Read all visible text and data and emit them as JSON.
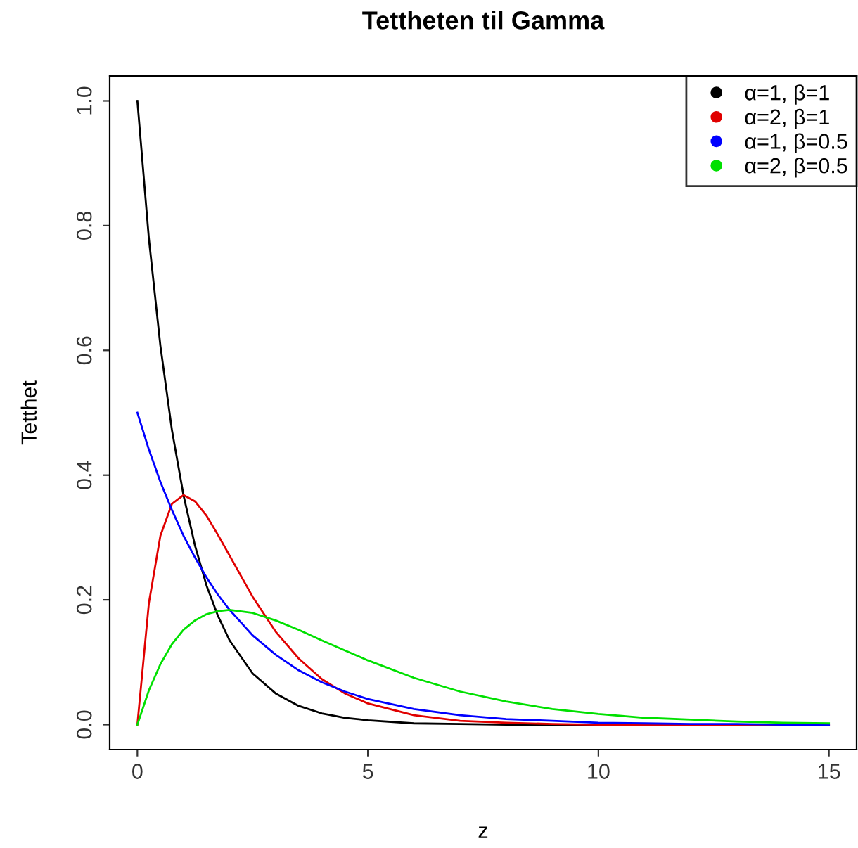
{
  "chart_data": {
    "type": "line",
    "title": "Tettheten til Gamma",
    "xlabel": "z",
    "ylabel": "Tetthet",
    "x": [
      0,
      0.25,
      0.5,
      0.75,
      1,
      1.25,
      1.5,
      1.75,
      2,
      2.5,
      3,
      3.5,
      4,
      4.5,
      5,
      6,
      7,
      8,
      9,
      10,
      11,
      12,
      13,
      14,
      15
    ],
    "series": [
      {
        "name": "α=1, β=1",
        "color": "#000000",
        "values": [
          1,
          0.779,
          0.607,
          0.472,
          0.368,
          0.287,
          0.223,
          0.174,
          0.135,
          0.082,
          0.05,
          0.03,
          0.018,
          0.011,
          0.007,
          0.002,
          0.001,
          0,
          0,
          0,
          null,
          null,
          null,
          null,
          null
        ]
      },
      {
        "name": "α=2, β=1",
        "color": "#e00000",
        "values": [
          0,
          0.195,
          0.303,
          0.354,
          0.368,
          0.358,
          0.335,
          0.304,
          0.271,
          0.205,
          0.149,
          0.106,
          0.073,
          0.05,
          0.034,
          0.015,
          0.006,
          0.003,
          0.001,
          0,
          0,
          0,
          0,
          0,
          0
        ]
      },
      {
        "name": "α=1, β=0.5",
        "color": "#0000ff",
        "values": [
          0.5,
          0.441,
          0.389,
          0.344,
          0.303,
          0.268,
          0.236,
          0.208,
          0.184,
          0.143,
          0.112,
          0.087,
          0.068,
          0.053,
          0.041,
          0.025,
          0.015,
          0.009,
          0.006,
          0.003,
          0.002,
          0.001,
          0.001,
          0,
          0
        ]
      },
      {
        "name": "α=2, β=0.5",
        "color": "#00e000",
        "values": [
          0,
          0.055,
          0.097,
          0.129,
          0.152,
          0.167,
          0.177,
          0.182,
          0.184,
          0.179,
          0.167,
          0.152,
          0.135,
          0.119,
          0.103,
          0.075,
          0.053,
          0.037,
          0.025,
          0.017,
          0.011,
          0.008,
          0.005,
          0.003,
          0.002
        ]
      }
    ],
    "xlim": [
      -0.6,
      15.6
    ],
    "ylim": [
      -0.04,
      1.04
    ],
    "xticks": [
      0,
      5,
      10,
      15
    ],
    "yticks": [
      {
        "value": 0,
        "label": "0.0"
      },
      0.2,
      0.4,
      0.6,
      0.8,
      {
        "value": 1,
        "label": "1.0"
      }
    ],
    "grid": false,
    "legend": "top right",
    "marker": "none",
    "line_style": "solid"
  }
}
